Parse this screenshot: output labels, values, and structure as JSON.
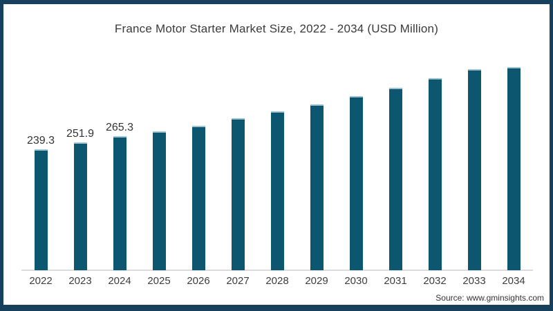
{
  "chart_data": {
    "type": "bar",
    "title": "France Motor Starter Market Size, 2022 - 2034 (USD Million)",
    "categories": [
      "2022",
      "2023",
      "2024",
      "2025",
      "2026",
      "2027",
      "2028",
      "2029",
      "2030",
      "2031",
      "2032",
      "2033",
      "2034"
    ],
    "values": [
      239.3,
      251.9,
      265.3,
      275,
      285,
      300,
      315,
      328,
      345,
      361,
      380,
      399,
      419
    ],
    "data_labels": [
      "239.3",
      "251.9",
      "265.3",
      "",
      "",
      "",
      "",
      "",
      "",
      "",
      "",
      "",
      ""
    ],
    "xlabel": "",
    "ylabel": "USD Million",
    "ylim": [
      0,
      440
    ],
    "grid": false,
    "legend_position": "none",
    "bar_color": "#0d566f",
    "border_color": "#16405c",
    "axis_line_color": "#dcdcdc",
    "source": "Source: www.gminsights.com"
  }
}
